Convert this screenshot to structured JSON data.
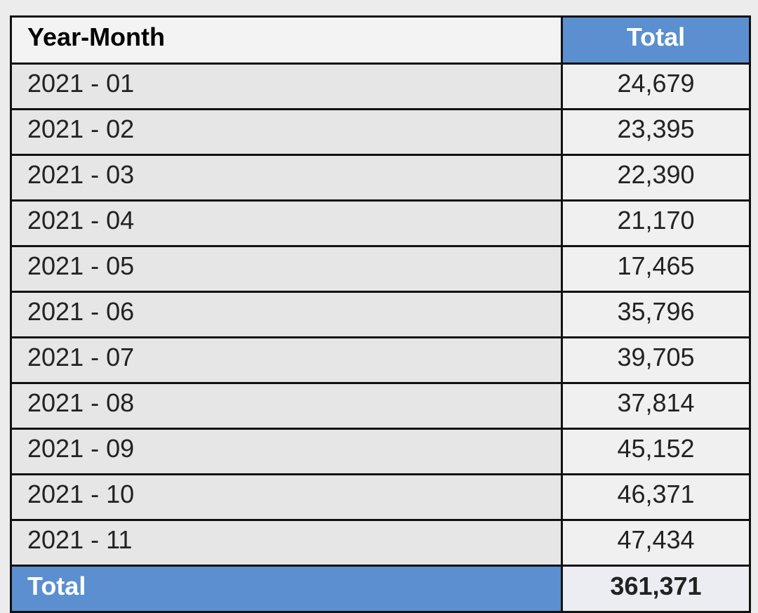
{
  "table": {
    "header": [
      "Year-Month",
      "Total"
    ],
    "rows": [
      [
        "2021 - 01",
        "24,679"
      ],
      [
        "2021 - 02",
        "23,395"
      ],
      [
        "2021 - 03",
        "22,390"
      ],
      [
        "2021 - 04",
        "21,170"
      ],
      [
        "2021 - 05",
        "17,465"
      ],
      [
        "2021 - 06",
        "35,796"
      ],
      [
        "2021 - 07",
        "39,705"
      ],
      [
        "2021 - 08",
        "37,814"
      ],
      [
        "2021 - 09",
        "45,152"
      ],
      [
        "2021 - 10",
        "46,371"
      ],
      [
        "2021 - 11",
        "47,434"
      ]
    ],
    "footer": [
      "Total",
      "361,371"
    ]
  }
}
